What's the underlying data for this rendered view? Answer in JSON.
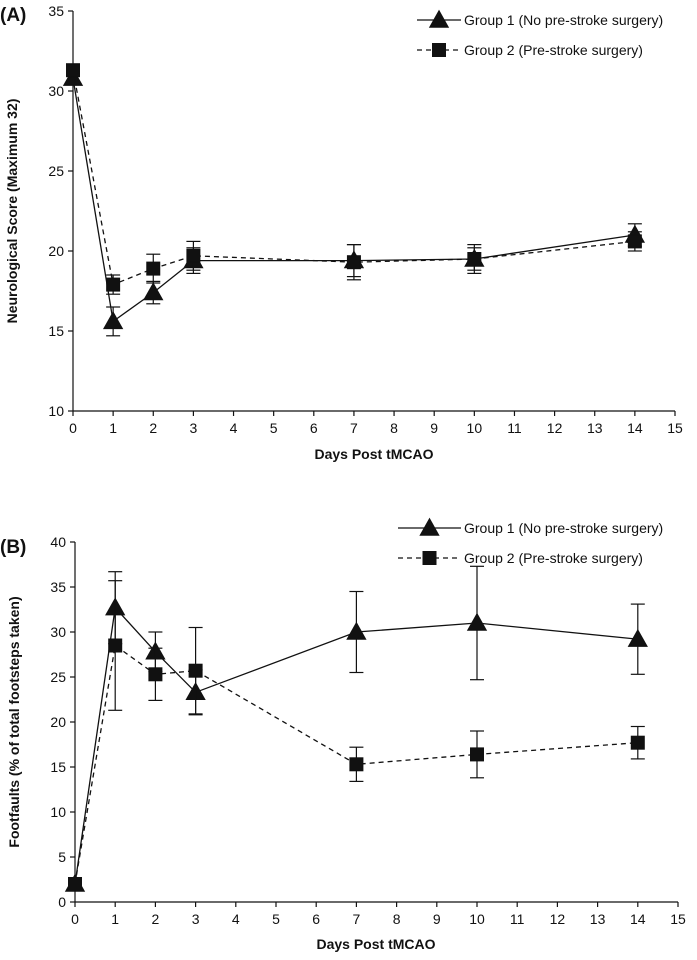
{
  "chart_data": [
    {
      "type": "line",
      "panel_label": "(A)",
      "xlabel": "Days Post tMCAO",
      "ylabel": "Neurological Score (Maximum 32)",
      "xlim": [
        0,
        15
      ],
      "ylim": [
        10,
        35
      ],
      "xticks": [
        "0",
        "1",
        "2",
        "3",
        "4",
        "5",
        "6",
        "7",
        "8",
        "9",
        "10",
        "11",
        "12",
        "13",
        "14",
        "15"
      ],
      "yticks": [
        "10",
        "15",
        "20",
        "25",
        "30",
        "35"
      ],
      "legend_position": "top-right",
      "series": [
        {
          "name": "Group 1 (No pre-stroke surgery)",
          "marker": "triangle",
          "line": "solid",
          "x": [
            0,
            1,
            2,
            3,
            7,
            10,
            14
          ],
          "y": [
            30.8,
            15.6,
            17.4,
            19.4,
            19.4,
            19.5,
            21.0
          ],
          "err": [
            0.4,
            0.9,
            0.7,
            0.8,
            1.0,
            0.7,
            0.7
          ]
        },
        {
          "name": "Group 2 (Pre-stroke surgery)",
          "marker": "square",
          "line": "dashed",
          "x": [
            0,
            1,
            2,
            3,
            7,
            10,
            14
          ],
          "y": [
            31.3,
            17.9,
            18.9,
            19.7,
            19.3,
            19.5,
            20.6
          ],
          "err": [
            0.3,
            0.6,
            0.9,
            0.9,
            1.1,
            0.9,
            0.6
          ]
        }
      ]
    },
    {
      "type": "line",
      "panel_label": "(B)",
      "xlabel": "Days Post tMCAO",
      "ylabel": "Footfaults (% of total footsteps taken)",
      "xlim": [
        0,
        15
      ],
      "ylim": [
        0,
        40
      ],
      "xticks": [
        "0",
        "1",
        "2",
        "3",
        "4",
        "5",
        "6",
        "7",
        "8",
        "9",
        "10",
        "11",
        "12",
        "13",
        "14",
        "15"
      ],
      "yticks": [
        "0",
        "5",
        "10",
        "15",
        "20",
        "25",
        "30",
        "35",
        "40"
      ],
      "legend_position": "top-right",
      "series": [
        {
          "name": "Group 1 (No pre-stroke surgery)",
          "marker": "triangle",
          "line": "solid",
          "x": [
            0,
            1,
            2,
            3,
            7,
            10,
            14
          ],
          "y": [
            2.0,
            32.7,
            27.8,
            23.3,
            30.0,
            31.0,
            29.2
          ],
          "err": [
            0.3,
            4.0,
            2.2,
            2.5,
            4.5,
            6.3,
            3.9
          ]
        },
        {
          "name": "Group 2 (Pre-stroke surgery)",
          "marker": "square",
          "line": "dashed",
          "x": [
            0,
            1,
            2,
            3,
            7,
            10,
            14
          ],
          "y": [
            2.0,
            28.5,
            25.3,
            25.7,
            15.3,
            16.4,
            17.7
          ],
          "err": [
            0.3,
            7.2,
            2.9,
            4.8,
            1.9,
            2.6,
            1.8
          ]
        }
      ]
    }
  ]
}
